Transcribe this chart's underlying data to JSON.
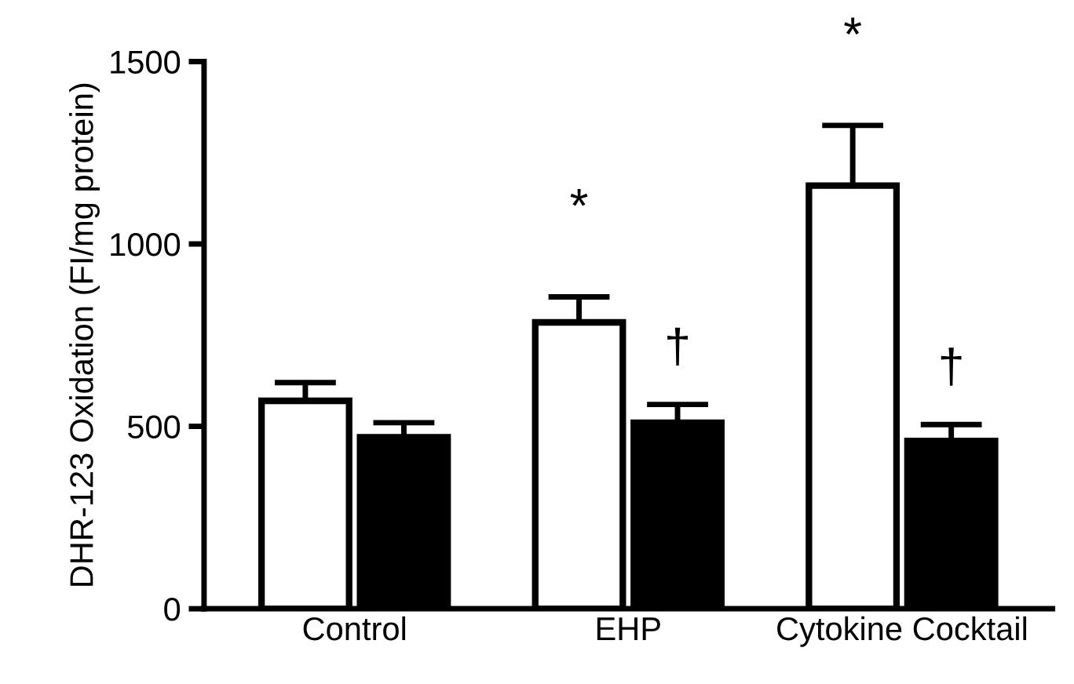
{
  "chart_data": {
    "type": "bar",
    "ylabel": "DHR-123 Oxidation (FI/mg protein)",
    "categories": [
      "Control",
      "EHP",
      "Cytokine Cocktail"
    ],
    "series": [
      {
        "color": "#ffffff",
        "values": [
          570,
          785,
          1160
        ],
        "errors": [
          50,
          70,
          165
        ]
      },
      {
        "color": "#000000",
        "values": [
          470,
          510,
          460
        ],
        "errors": [
          40,
          50,
          45
        ]
      }
    ],
    "ylim": [
      0,
      1500
    ],
    "yticks": [
      0,
      500,
      1000,
      1500
    ],
    "grid": false,
    "legend": false,
    "annotations": [
      "*",
      "†",
      "*",
      "†"
    ]
  }
}
